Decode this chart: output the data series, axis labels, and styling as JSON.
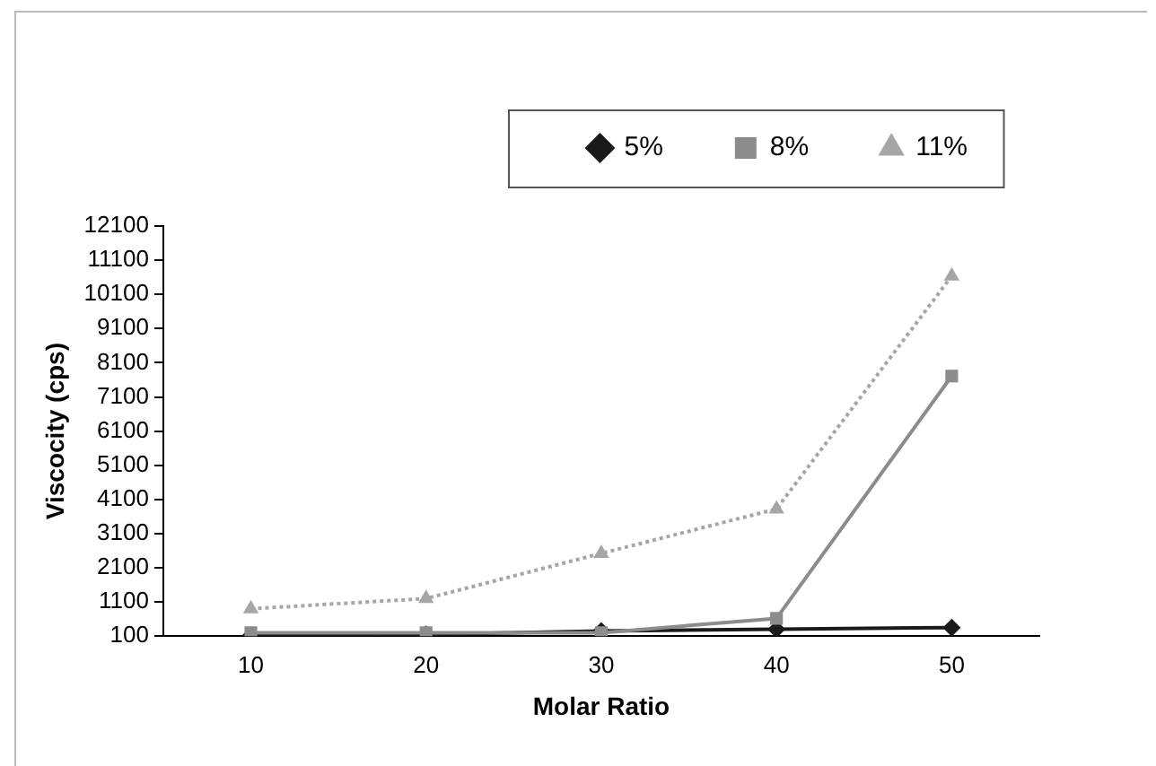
{
  "chart_data": {
    "type": "line",
    "xlabel": "Molar Ratio",
    "ylabel": "Viscocity (cps)",
    "categories": [
      "10",
      "20",
      "30",
      "40",
      "50"
    ],
    "series": [
      {
        "name": "5%",
        "color": "#1a1a1a",
        "marker": "diamond",
        "line_style": "solid",
        "values": [
          120,
          150,
          250,
          300,
          350
        ]
      },
      {
        "name": "8%",
        "color": "#8c8c8c",
        "marker": "square",
        "line_style": "solid",
        "values": [
          200,
          200,
          200,
          620,
          7710
        ]
      },
      {
        "name": "11%",
        "color": "#a6a6a6",
        "marker": "triangle",
        "line_style": "dotted",
        "values": [
          900,
          1200,
          2520,
          3820,
          10640
        ]
      }
    ],
    "ylim": [
      100,
      12100
    ],
    "yticks": [
      100,
      1100,
      2100,
      3100,
      4100,
      5100,
      6100,
      7100,
      8100,
      9100,
      10100,
      11100,
      12100
    ],
    "grid": false,
    "legend": "top right"
  }
}
